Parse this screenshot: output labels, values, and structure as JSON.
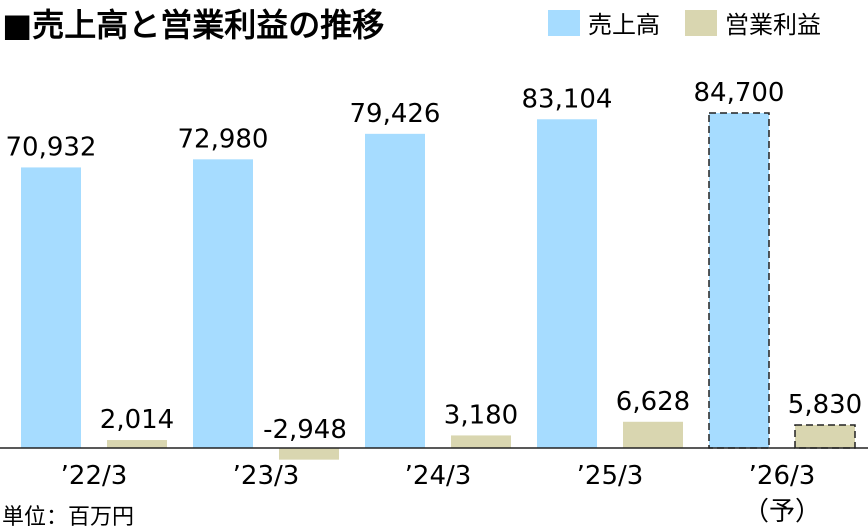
{
  "chart_data": {
    "type": "bar",
    "title": "■売上高と営業利益の推移",
    "unit_label": "単位：百万円",
    "categories": [
      "’22/3",
      "’23/3",
      "’24/3",
      "’25/3",
      "’26/3"
    ],
    "forecast_note": "（予）",
    "forecast_index": 4,
    "series": [
      {
        "name": "売上高",
        "color": "#a6dcff",
        "values": [
          70932,
          72980,
          79426,
          83104,
          84700
        ],
        "labels": [
          "70,932",
          "72,980",
          "79,426",
          "83,104",
          "84,700"
        ]
      },
      {
        "name": "営業利益",
        "color": "#d9d6b0",
        "values": [
          2014,
          -2948,
          3180,
          6628,
          5830
        ],
        "labels": [
          "2,014",
          "-2,948",
          "3,180",
          "6,628",
          "5,830"
        ]
      }
    ],
    "ylim": [
      0,
      90000
    ],
    "grid": false,
    "legend_position": "top-right"
  }
}
